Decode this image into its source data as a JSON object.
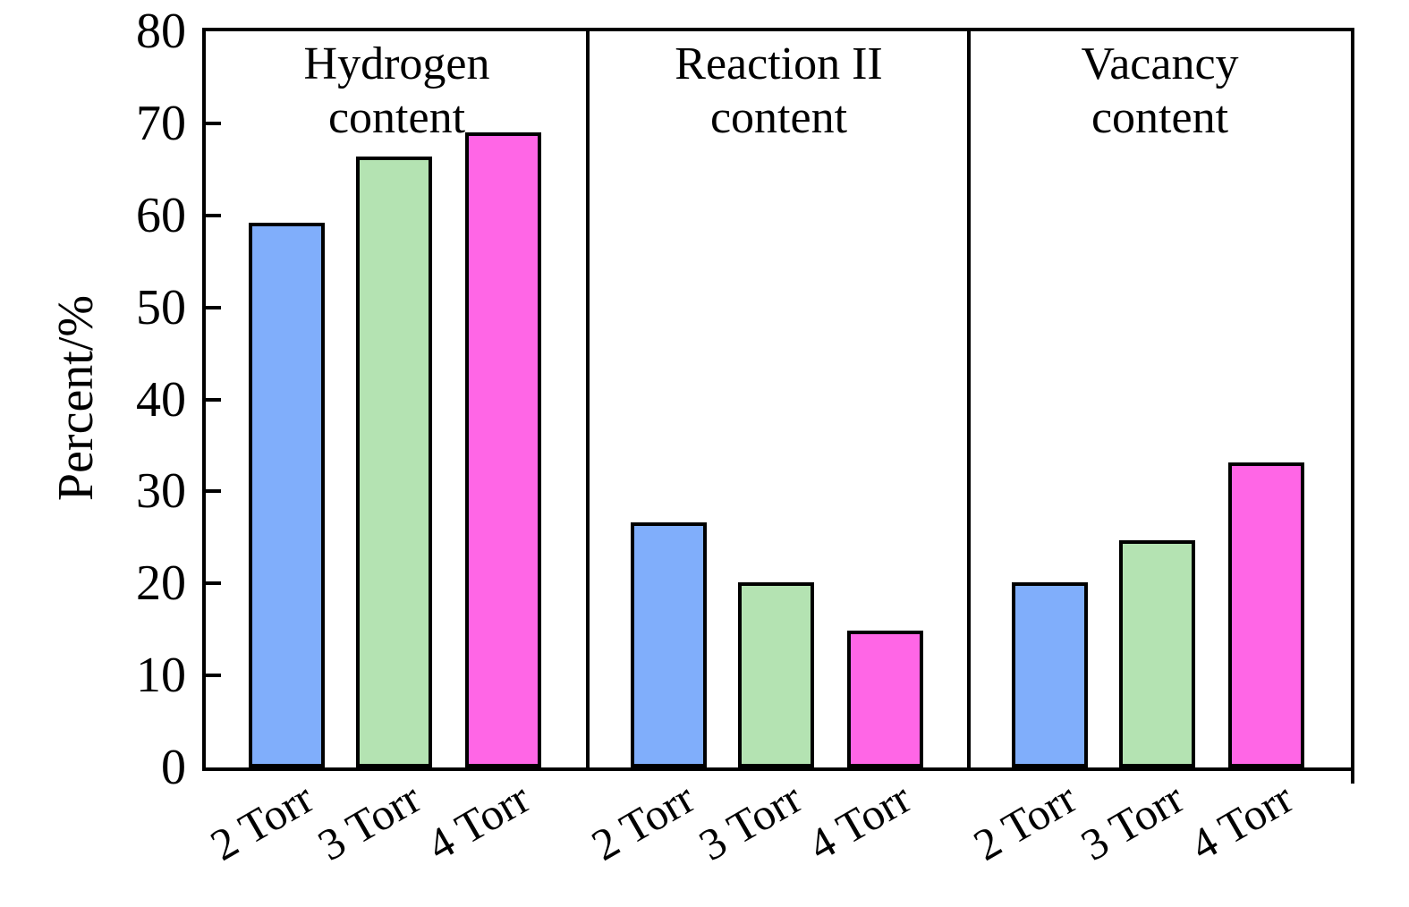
{
  "chart_data": {
    "type": "bar",
    "title": "",
    "ylabel": "Percent/%",
    "xlabel": "",
    "ylim": [
      0,
      80
    ],
    "yticks": [
      0,
      10,
      20,
      30,
      40,
      50,
      60,
      70,
      80
    ],
    "grid": false,
    "legend": "none",
    "axis_color": "#000000",
    "background_color": "#ffffff",
    "bar_colors": [
      "#80AEFB",
      "#B4E3B2",
      "#FF66E6"
    ],
    "bar_edge_color": "#000000",
    "categories": [
      "2 Torr",
      "3 Torr",
      "4 Torr"
    ],
    "panels": [
      {
        "title_line1": "Hydrogen",
        "title_line2": "content",
        "categories": [
          "2 Torr",
          "3 Torr",
          "4 Torr"
        ],
        "values": [
          59.2,
          66.4,
          69.0
        ]
      },
      {
        "title_line1": "Reaction II",
        "title_line2": "content",
        "categories": [
          "2 Torr",
          "3 Torr",
          "4 Torr"
        ],
        "values": [
          26.6,
          20.1,
          14.9
        ]
      },
      {
        "title_line1": "Vacancy",
        "title_line2": "content",
        "categories": [
          "2 Torr",
          "3 Torr",
          "4 Torr"
        ],
        "values": [
          20.1,
          24.7,
          33.1
        ]
      }
    ]
  }
}
